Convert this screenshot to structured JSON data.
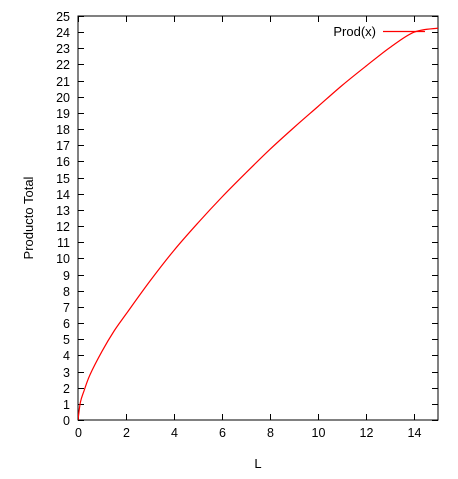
{
  "chart_data": {
    "type": "line",
    "title": "",
    "xlabel": "L",
    "ylabel": "Producto Total",
    "xlim": [
      0,
      15
    ],
    "ylim": [
      0,
      25
    ],
    "x_ticks": [
      "0",
      "2",
      "4",
      "6",
      "8",
      "10",
      "12",
      "14"
    ],
    "y_ticks": [
      "0",
      "1",
      "2",
      "3",
      "4",
      "5",
      "6",
      "7",
      "8",
      "9",
      "10",
      "11",
      "12",
      "13",
      "14",
      "15",
      "16",
      "17",
      "18",
      "19",
      "20",
      "21",
      "22",
      "23",
      "24",
      "25"
    ],
    "grid": false,
    "legend_position": "top-right",
    "series": [
      {
        "name": "Prod(x)",
        "color": "#ff0000",
        "x": [
          0,
          0.1,
          0.25,
          0.5,
          1,
          1.5,
          2,
          3,
          4,
          5,
          6,
          7,
          8,
          9,
          10,
          11,
          12,
          13,
          14,
          15
        ],
        "y": [
          0,
          1.1,
          1.8,
          2.8,
          4.25,
          5.5,
          6.55,
          8.6,
          10.5,
          12.2,
          13.8,
          15.3,
          16.75,
          18.1,
          19.4,
          20.7,
          21.9,
          23.05,
          24.0,
          24.25
        ]
      }
    ]
  }
}
